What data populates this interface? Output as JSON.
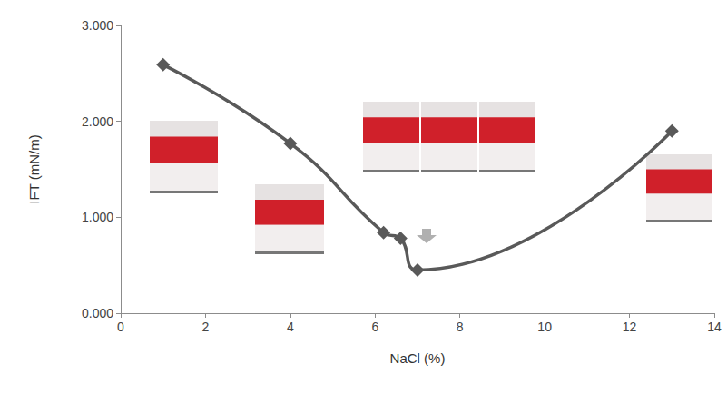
{
  "chart_data": {
    "type": "line",
    "x_label": "NaCl (%)",
    "y_label": "IFT (mN/m)",
    "x": [
      1,
      4,
      6.2,
      6.6,
      7,
      13
    ],
    "values": [
      2.59,
      1.77,
      0.84,
      0.78,
      0.45,
      1.9
    ],
    "color": "#595959",
    "marker": "diamond",
    "line_style": "solid",
    "xlim": [
      0,
      14
    ],
    "xticks": [
      0,
      2,
      4,
      6,
      8,
      10,
      12,
      14
    ],
    "ylim": [
      0,
      3
    ],
    "yticks": [
      {
        "value": 0,
        "label": "0.000"
      },
      {
        "value": 1,
        "label": "1.000"
      },
      {
        "value": 2,
        "label": "2.000"
      },
      {
        "value": 3,
        "label": "3.000"
      }
    ],
    "grid": false
  }
}
